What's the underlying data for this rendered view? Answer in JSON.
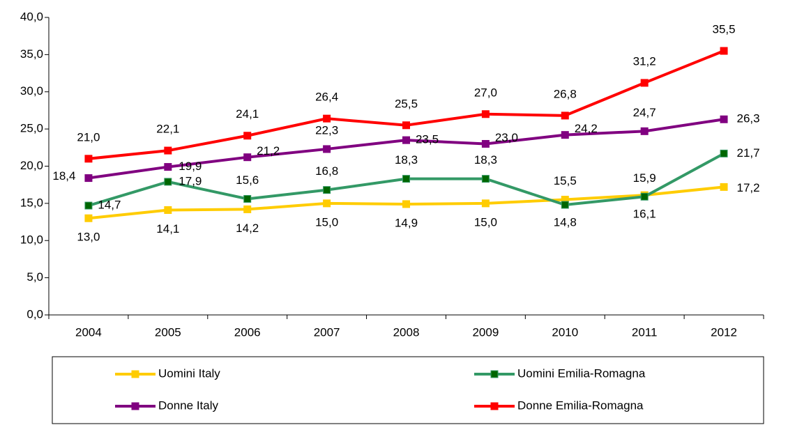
{
  "chart_data": {
    "type": "line",
    "categories": [
      "2004",
      "2005",
      "2006",
      "2007",
      "2008",
      "2009",
      "2010",
      "2011",
      "2012"
    ],
    "ylim": [
      0,
      40
    ],
    "yticks": [
      {
        "value": 0,
        "label": "0,0"
      },
      {
        "value": 5,
        "label": "5,0"
      },
      {
        "value": 10,
        "label": "10,0"
      },
      {
        "value": 15,
        "label": "15,0"
      },
      {
        "value": 20,
        "label": "20,0"
      },
      {
        "value": 25,
        "label": "25,0"
      },
      {
        "value": 30,
        "label": "30,0"
      },
      {
        "value": 35,
        "label": "35,0"
      },
      {
        "value": 40,
        "label": "40,0"
      }
    ],
    "grid": false,
    "series": [
      {
        "name": "Uomini Italy",
        "color": "#ffcc00",
        "values": [
          13.0,
          14.1,
          14.2,
          15.0,
          14.9,
          15.0,
          15.5,
          16.1,
          17.2
        ],
        "value_labels": [
          "13,0",
          "14,1",
          "14,2",
          "15,0",
          "14,9",
          "15,0",
          "15,5",
          "16,1",
          "17,2"
        ]
      },
      {
        "name": "Uomini Emilia-Romagna",
        "color": "#339966",
        "values": [
          14.7,
          17.9,
          15.6,
          16.8,
          18.3,
          18.3,
          14.8,
          15.9,
          21.7
        ],
        "value_labels": [
          "14,7",
          "17,9",
          "15,6",
          "16,8",
          "18,3",
          "18,3",
          "14,8",
          "15,9",
          "21,7"
        ]
      },
      {
        "name": "Donne Italy",
        "color": "#800080",
        "values": [
          18.4,
          19.9,
          21.2,
          22.3,
          23.5,
          23.0,
          24.2,
          24.7,
          26.3
        ],
        "value_labels": [
          "18,4",
          "19,9",
          "21,2",
          "22,3",
          "23,5",
          "23,0",
          "24,2",
          "24,7",
          "26,3"
        ]
      },
      {
        "name": "Donne Emilia-Romagna",
        "color": "#ff0000",
        "values": [
          21.0,
          22.1,
          24.1,
          26.4,
          25.5,
          27.0,
          26.8,
          31.2,
          35.5
        ],
        "value_labels": [
          "21,0",
          "22,1",
          "24,1",
          "26,4",
          "25,5",
          "27,0",
          "26,8",
          "31,2",
          "35,5"
        ]
      }
    ]
  }
}
